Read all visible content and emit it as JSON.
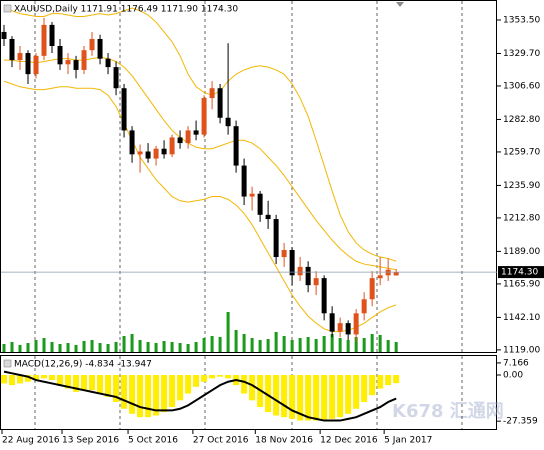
{
  "chart_data": [
    {
      "type": "candlestick",
      "title": "XAUUSD,Daily  1171.91 1176.49 1171.90 1174.30",
      "x": [
        0,
        1,
        2,
        3,
        4,
        5,
        6,
        7,
        8,
        9,
        10,
        11,
        12,
        13,
        14,
        15,
        16,
        17,
        18,
        19,
        20,
        21,
        22,
        23,
        24,
        25,
        26,
        27,
        28,
        29,
        30,
        31,
        32,
        33,
        34,
        35,
        36,
        37,
        38,
        39,
        40,
        41,
        42,
        43,
        44,
        45,
        46,
        47,
        48,
        49
      ],
      "open": [
        1345,
        1340,
        1325,
        1330,
        1315,
        1328,
        1350,
        1335,
        1322,
        1325,
        1318,
        1332,
        1340,
        1326,
        1320,
        1305,
        1275,
        1258,
        1260,
        1255,
        1262,
        1258,
        1270,
        1266,
        1275,
        1272,
        1298,
        1305,
        1284,
        1278,
        1250,
        1228,
        1230,
        1215,
        1212,
        1185,
        1190,
        1172,
        1178,
        1165,
        1170,
        1145,
        1132,
        1138,
        1130,
        1145,
        1155,
        1170,
        1172,
        1171.91
      ],
      "high": [
        1350,
        1342,
        1335,
        1332,
        1330,
        1355,
        1352,
        1340,
        1330,
        1328,
        1335,
        1345,
        1343,
        1330,
        1324,
        1308,
        1278,
        1265,
        1266,
        1264,
        1268,
        1272,
        1275,
        1278,
        1282,
        1300,
        1310,
        1308,
        1337,
        1282,
        1255,
        1235,
        1232,
        1225,
        1215,
        1195,
        1192,
        1185,
        1182,
        1175,
        1172,
        1150,
        1142,
        1140,
        1148,
        1160,
        1175,
        1185,
        1184,
        1176.49
      ],
      "low": [
        1335,
        1320,
        1318,
        1308,
        1312,
        1325,
        1330,
        1318,
        1315,
        1312,
        1315,
        1328,
        1322,
        1315,
        1300,
        1270,
        1252,
        1245,
        1252,
        1250,
        1255,
        1256,
        1262,
        1262,
        1268,
        1270,
        1290,
        1280,
        1272,
        1245,
        1222,
        1218,
        1210,
        1205,
        1180,
        1178,
        1165,
        1168,
        1160,
        1158,
        1140,
        1128,
        1128,
        1126,
        1125,
        1140,
        1150,
        1165,
        1168,
        1171.9
      ],
      "close": [
        1340,
        1325,
        1330,
        1315,
        1328,
        1350,
        1335,
        1322,
        1325,
        1318,
        1332,
        1340,
        1326,
        1320,
        1305,
        1275,
        1258,
        1260,
        1255,
        1262,
        1258,
        1270,
        1266,
        1275,
        1272,
        1298,
        1305,
        1284,
        1278,
        1250,
        1228,
        1230,
        1215,
        1212,
        1185,
        1190,
        1172,
        1178,
        1165,
        1170,
        1145,
        1132,
        1138,
        1130,
        1145,
        1155,
        1170,
        1172,
        1176,
        1174.3
      ],
      "up_color": "#e0521c",
      "down_color": "#000000",
      "bands": [
        {
          "color": "#f2b705",
          "values": [
            1362,
            1360,
            1358,
            1357,
            1356,
            1356,
            1358,
            1358,
            1357,
            1356,
            1356,
            1357,
            1358,
            1357,
            1358,
            1360,
            1362,
            1360,
            1357,
            1352,
            1345,
            1338,
            1328,
            1315,
            1306,
            1302,
            1300,
            1303,
            1310,
            1315,
            1318,
            1320,
            1321,
            1320,
            1318,
            1315,
            1308,
            1298,
            1285,
            1268,
            1250,
            1232,
            1215,
            1203,
            1195,
            1190,
            1187,
            1185,
            1184,
            1182
          ]
        },
        {
          "color": "#f2b705",
          "values": [
            1325,
            1325,
            1324,
            1324,
            1323,
            1324,
            1325,
            1326,
            1326,
            1325,
            1325,
            1326,
            1327,
            1326,
            1324,
            1320,
            1314,
            1306,
            1298,
            1290,
            1282,
            1275,
            1270,
            1266,
            1263,
            1262,
            1262,
            1264,
            1266,
            1268,
            1268,
            1266,
            1262,
            1256,
            1250,
            1243,
            1235,
            1227,
            1219,
            1211,
            1204,
            1197,
            1191,
            1186,
            1182,
            1180,
            1179,
            1178,
            1177,
            1176
          ]
        },
        {
          "color": "#f2b705",
          "values": [
            1310,
            1308,
            1306,
            1305,
            1304,
            1304,
            1305,
            1306,
            1306,
            1305,
            1305,
            1305,
            1304,
            1300,
            1292,
            1280,
            1268,
            1256,
            1248,
            1240,
            1234,
            1228,
            1225,
            1224,
            1225,
            1226,
            1228,
            1228,
            1226,
            1222,
            1216,
            1208,
            1198,
            1188,
            1178,
            1168,
            1158,
            1150,
            1143,
            1138,
            1134,
            1132,
            1132,
            1133,
            1135,
            1138,
            1142,
            1146,
            1149,
            1151
          ]
        }
      ],
      "volume": {
        "color": "#1a9a1a",
        "values": [
          8,
          10,
          7,
          9,
          12,
          14,
          10,
          8,
          9,
          7,
          11,
          12,
          9,
          8,
          10,
          16,
          18,
          12,
          10,
          9,
          11,
          10,
          9,
          8,
          10,
          14,
          16,
          15,
          40,
          22,
          18,
          14,
          12,
          13,
          20,
          16,
          12,
          14,
          15,
          13,
          16,
          18,
          14,
          12,
          15,
          14,
          18,
          17,
          12,
          10
        ]
      },
      "price_line": {
        "value": 1174.3,
        "label": "1174.30"
      },
      "xlim": [
        -0.5,
        61.6
      ],
      "ylim": [
        1117.5,
        1367.7
      ],
      "yticks": [
        {
          "value": 1353.5,
          "label": "1353.50"
        },
        {
          "value": 1329.7,
          "label": "1329.70"
        },
        {
          "value": 1306.6,
          "label": "1306.60"
        },
        {
          "value": 1282.8,
          "label": "1282.80"
        },
        {
          "value": 1259.7,
          "label": "1259.70"
        },
        {
          "value": 1235.9,
          "label": "1235.90"
        },
        {
          "value": 1212.8,
          "label": "1212.80"
        },
        {
          "value": 1189,
          "label": "1189.00"
        },
        {
          "value": 1165.9,
          "label": "1165.90"
        },
        {
          "value": 1142.1,
          "label": "1142.10"
        },
        {
          "value": 1119,
          "label": "1119.00"
        }
      ]
    },
    {
      "type": "macd",
      "title": "MACD(12,26,9) -4.834 -13.947",
      "x": [
        0,
        1,
        2,
        3,
        4,
        5,
        6,
        7,
        8,
        9,
        10,
        11,
        12,
        13,
        14,
        15,
        16,
        17,
        18,
        19,
        20,
        21,
        22,
        23,
        24,
        25,
        26,
        27,
        28,
        29,
        30,
        31,
        32,
        33,
        34,
        35,
        36,
        37,
        38,
        39,
        40,
        41,
        42,
        43,
        44,
        45,
        46,
        47,
        48,
        49
      ],
      "histogram": {
        "color": "#ffee00",
        "values": [
          -5,
          -6,
          -5,
          -4,
          -3,
          -2,
          -3,
          -6,
          -8,
          -10,
          -9,
          -9,
          -11,
          -13,
          -16,
          -20,
          -23,
          -25,
          -25,
          -24,
          -22,
          -19,
          -15,
          -11,
          -7,
          -4,
          -2,
          -1,
          -2,
          -6,
          -11,
          -15,
          -19,
          -22,
          -24,
          -25,
          -26,
          -27,
          -27,
          -27,
          -27,
          -26,
          -25,
          -23,
          -20,
          -16,
          -12,
          -8,
          -6,
          -4.834
        ]
      },
      "signal": {
        "color": "#000000",
        "values": [
          2,
          1,
          0,
          -1,
          -3,
          -4,
          -5,
          -6,
          -7,
          -8,
          -9,
          -10,
          -11,
          -12,
          -13,
          -15,
          -17,
          -19,
          -20,
          -21,
          -21,
          -21,
          -20,
          -18,
          -15,
          -12,
          -9,
          -6,
          -4,
          -3,
          -4,
          -6,
          -9,
          -12,
          -15,
          -18,
          -21,
          -23,
          -25,
          -26,
          -27,
          -27,
          -27,
          -26,
          -25,
          -23,
          -21,
          -19,
          -16,
          -13.947
        ]
      },
      "xlim": [
        -0.5,
        61.6
      ],
      "ylim": [
        -32.6,
        11.85
      ],
      "yticks": [
        7.166,
        {
          "value": 0,
          "label": "0.00"
        },
        -27.359
      ],
      "xticks": [
        {
          "value": -0.25,
          "label": "22 Aug 2016"
        },
        {
          "value": 7.25,
          "label": "13 Sep 2016"
        },
        {
          "value": 15.5,
          "label": "5 Oct 2016"
        },
        {
          "value": 23.6,
          "label": "27 Oct 2016"
        },
        {
          "value": 31.4,
          "label": "18 Nov 2016"
        },
        {
          "value": 39.5,
          "label": "12 Dec 2016"
        },
        {
          "value": 47.5,
          "label": "5 Jan 2017"
        }
      ]
    }
  ],
  "watermark": "K678 汇通网"
}
